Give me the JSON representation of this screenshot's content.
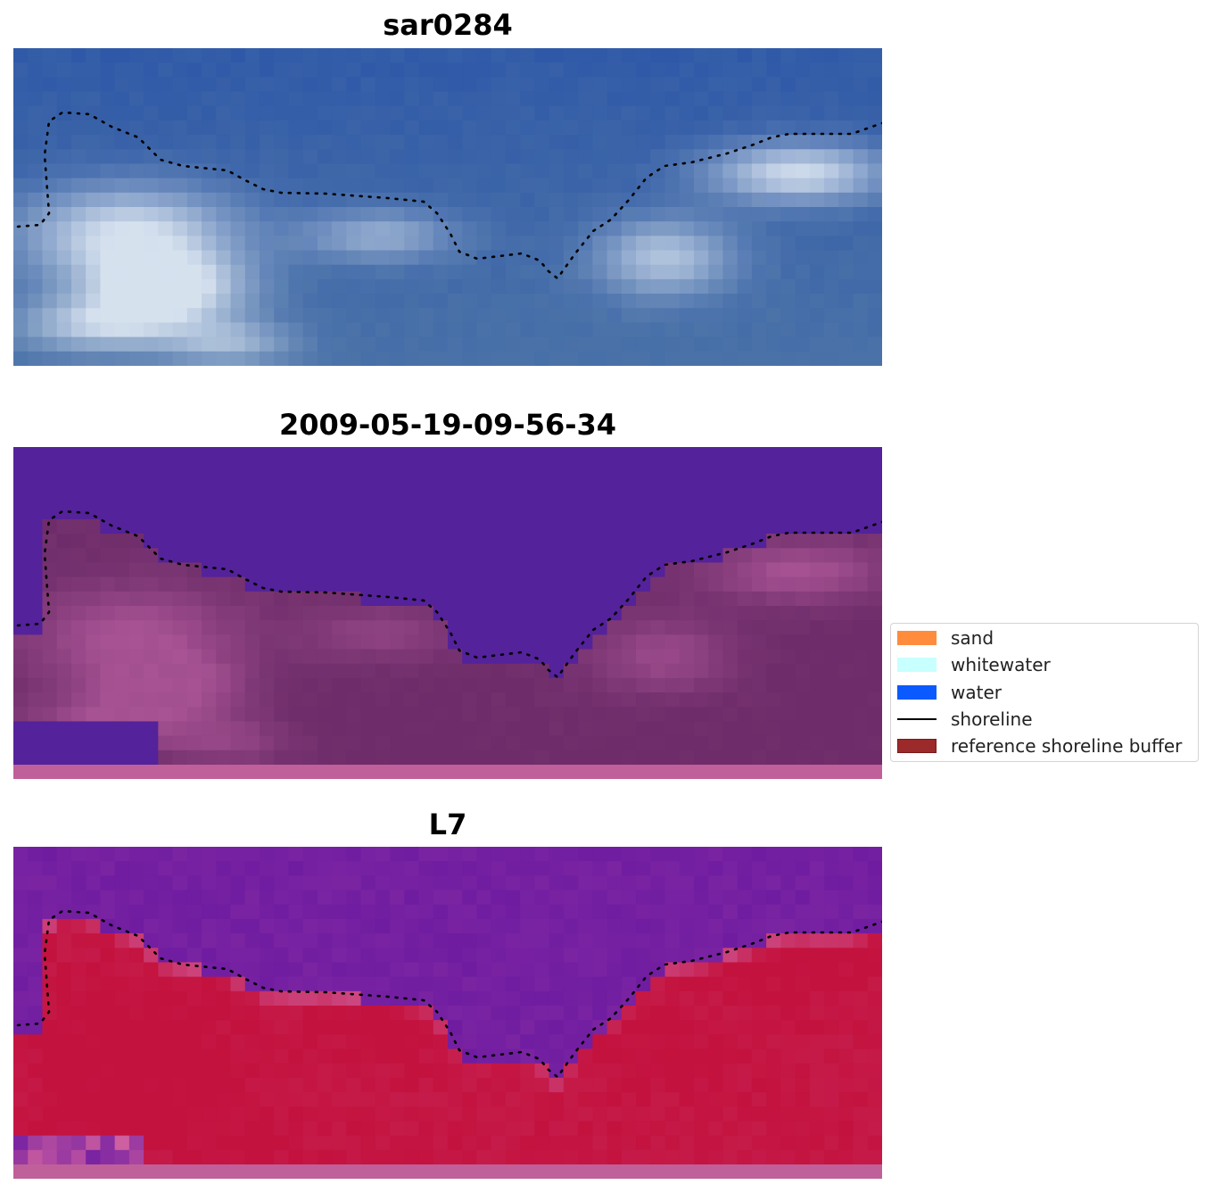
{
  "panels": [
    {
      "title": "sar0284",
      "palette": "rgb"
    },
    {
      "title": "2009-05-19-09-56-34",
      "palette": "classified"
    },
    {
      "title": "L7",
      "palette": "index"
    }
  ],
  "legend": {
    "items": [
      {
        "label": "sand",
        "kind": "patch",
        "color": "#ff8c3c"
      },
      {
        "label": "whitewater",
        "kind": "patch",
        "color": "#c8ffff"
      },
      {
        "label": "water",
        "kind": "patch",
        "color": "#0a5aff"
      },
      {
        "label": "shoreline",
        "kind": "line",
        "color": "#000000"
      },
      {
        "label": "reference shoreline buffer",
        "kind": "patch",
        "color": "#9c2a2a"
      }
    ]
  },
  "colors": {
    "rgb_deep_water": "#2e58a8",
    "rgb_shallow": "#4a72a8",
    "rgb_whitewater": "#e6eef6",
    "class_water": "#54229a",
    "class_land": "#6e2d6a",
    "class_bright": "#b95ea0",
    "class_bottom_band": "#c0609a",
    "index_water": "#7a24a2",
    "index_land": "#c4123e",
    "index_transition": "#d060a0",
    "shoreline_dots": "#000000"
  }
}
